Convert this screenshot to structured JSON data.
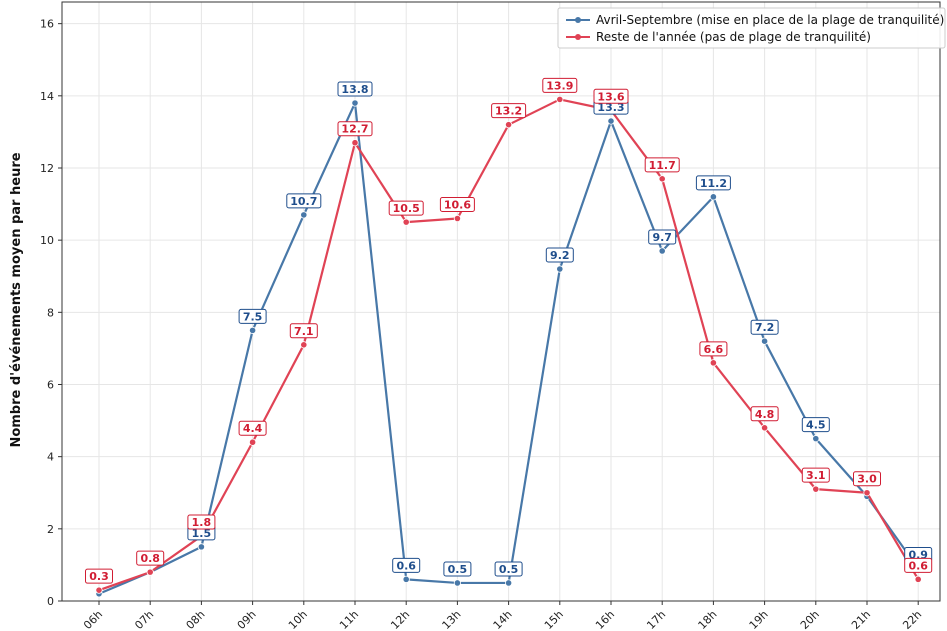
{
  "chart_data": {
    "type": "line",
    "title": "",
    "xlabel": "",
    "ylabel": "Nombre d'événements moyen par heure",
    "ylim": [
      0,
      16.6
    ],
    "yticks": [
      0,
      2,
      4,
      6,
      8,
      10,
      12,
      14,
      16
    ],
    "grid": true,
    "legend_position": "top-right",
    "categories": [
      "06h",
      "07h",
      "08h",
      "09h",
      "10h",
      "11h",
      "12h",
      "13h",
      "14h",
      "15h",
      "16h",
      "17h",
      "18h",
      "19h",
      "20h",
      "21h",
      "22h"
    ],
    "series": [
      {
        "name": "Avril-Septembre (mise en place de la plage de tranquilité)",
        "color": "#4878a8",
        "label_color": "#1f4e8c",
        "values": [
          0.2,
          0.8,
          1.5,
          7.5,
          10.7,
          13.8,
          0.6,
          0.5,
          0.5,
          9.2,
          13.3,
          9.7,
          11.2,
          7.2,
          4.5,
          2.9,
          0.9
        ],
        "labels": [
          "",
          "",
          "1.5",
          "7.5",
          "10.7",
          "13.8",
          "0.6",
          "0.5",
          "0.5",
          "9.2",
          "13.3",
          "9.7",
          "11.2",
          "7.2",
          "4.5",
          "",
          "0.9"
        ]
      },
      {
        "name": "Reste de l'année (pas de plage de tranquilité)",
        "color": "#e04355",
        "label_color": "#d11d33",
        "values": [
          0.3,
          0.8,
          1.8,
          4.4,
          7.1,
          12.7,
          10.5,
          10.6,
          13.2,
          13.9,
          13.6,
          11.7,
          6.6,
          4.8,
          3.1,
          3.0,
          0.6
        ],
        "labels": [
          "0.3",
          "0.8",
          "1.8",
          "4.4",
          "7.1",
          "12.7",
          "10.5",
          "10.6",
          "13.2",
          "13.9",
          "13.6",
          "11.7",
          "6.6",
          "4.8",
          "3.1",
          "3.0",
          "0.6"
        ]
      }
    ]
  }
}
